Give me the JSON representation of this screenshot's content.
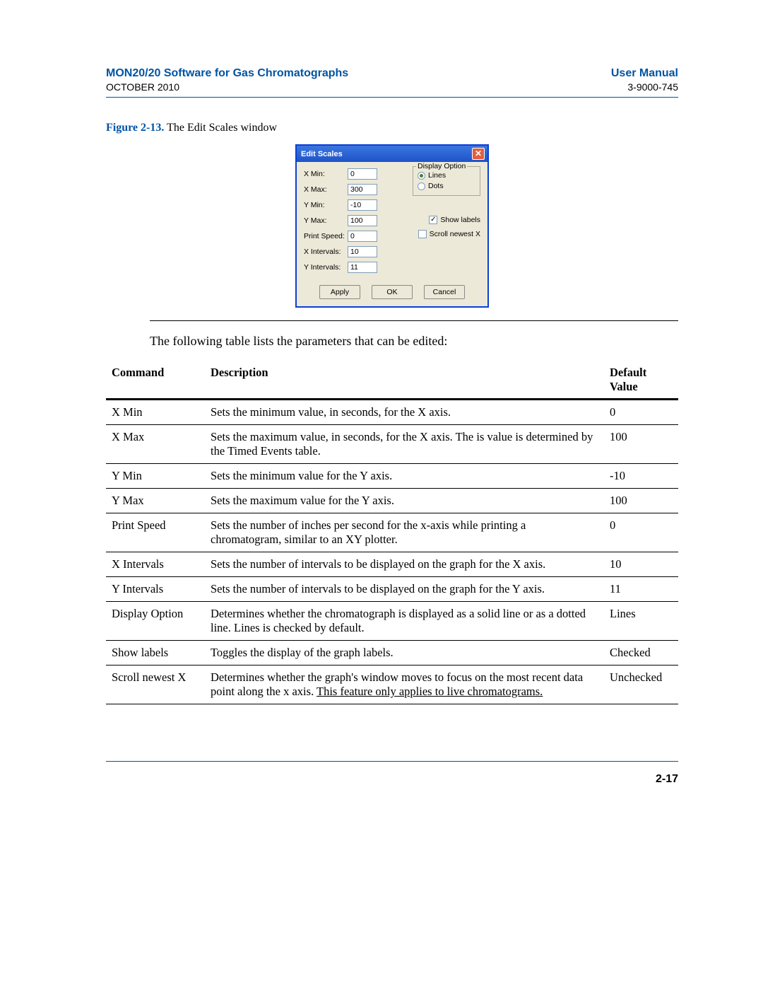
{
  "header": {
    "title_left": "MON20/20 Software for Gas Chromatographs",
    "title_right": "User Manual",
    "sub_left": "OCTOBER 2010",
    "sub_right": "3-9000-745"
  },
  "figure": {
    "label": "Figure 2-13.",
    "caption": "  The Edit Scales window"
  },
  "dialog": {
    "title": "Edit Scales",
    "close": "✕",
    "fields": [
      {
        "label": "X Min:",
        "value": "0"
      },
      {
        "label": "X Max:",
        "value": "300"
      },
      {
        "label": "Y Min:",
        "value": "-10"
      },
      {
        "label": "Y Max:",
        "value": "100"
      },
      {
        "label": "Print Speed:",
        "value": "0"
      },
      {
        "label": "X Intervals:",
        "value": "10"
      },
      {
        "label": "Y Intervals:",
        "value": "11"
      }
    ],
    "group_title": "Display Option",
    "radio_lines": "Lines",
    "radio_dots": "Dots",
    "check_show_labels": "Show labels",
    "check_scroll": "Scroll newest X",
    "btn_apply": "Apply",
    "btn_ok": "OK",
    "btn_cancel": "Cancel"
  },
  "intro": "The following table lists the parameters that can be edited:",
  "table": {
    "head_command": "Command",
    "head_description": "Description",
    "head_default": "Default Value",
    "rows": [
      {
        "c": "X Min",
        "d": "Sets the minimum value, in seconds, for the X axis.",
        "v": "0"
      },
      {
        "c": "X Max",
        "d": "Sets the maximum value, in seconds, for the X axis.  The is value is determined by the Timed Events table.",
        "v": "100"
      },
      {
        "c": "Y Min",
        "d": "Sets the minimum value for the Y axis.",
        "v": "-10"
      },
      {
        "c": "Y Max",
        "d": "Sets the maximum value for the Y axis.",
        "v": "100"
      },
      {
        "c": "Print Speed",
        "d": "Sets the number of inches per second for the x-axis while printing a chromatogram, similar to an XY plotter.",
        "v": "0"
      },
      {
        "c": "X Intervals",
        "d": "Sets the number of intervals to be displayed on the graph for the X axis.",
        "v": "10"
      },
      {
        "c": "Y Intervals",
        "d": "Sets the number of intervals to be displayed on the graph for the Y axis.",
        "v": "11"
      },
      {
        "c": "Display Option",
        "d": "Determines whether the chromatograph is displayed as a solid line or as a dotted line.  Lines is checked by default.",
        "v": "Lines"
      },
      {
        "c": "Show labels",
        "d": "Toggles the display of the graph labels.",
        "v": "Checked"
      }
    ],
    "last_row": {
      "c": "Scroll newest X",
      "d_pre": "Determines whether the graph's window moves to focus on the most recent data point along the x axis.  ",
      "d_underline": "This feature only applies to live chromatograms.",
      "v": "Unchecked"
    }
  },
  "page_num": "2-17"
}
